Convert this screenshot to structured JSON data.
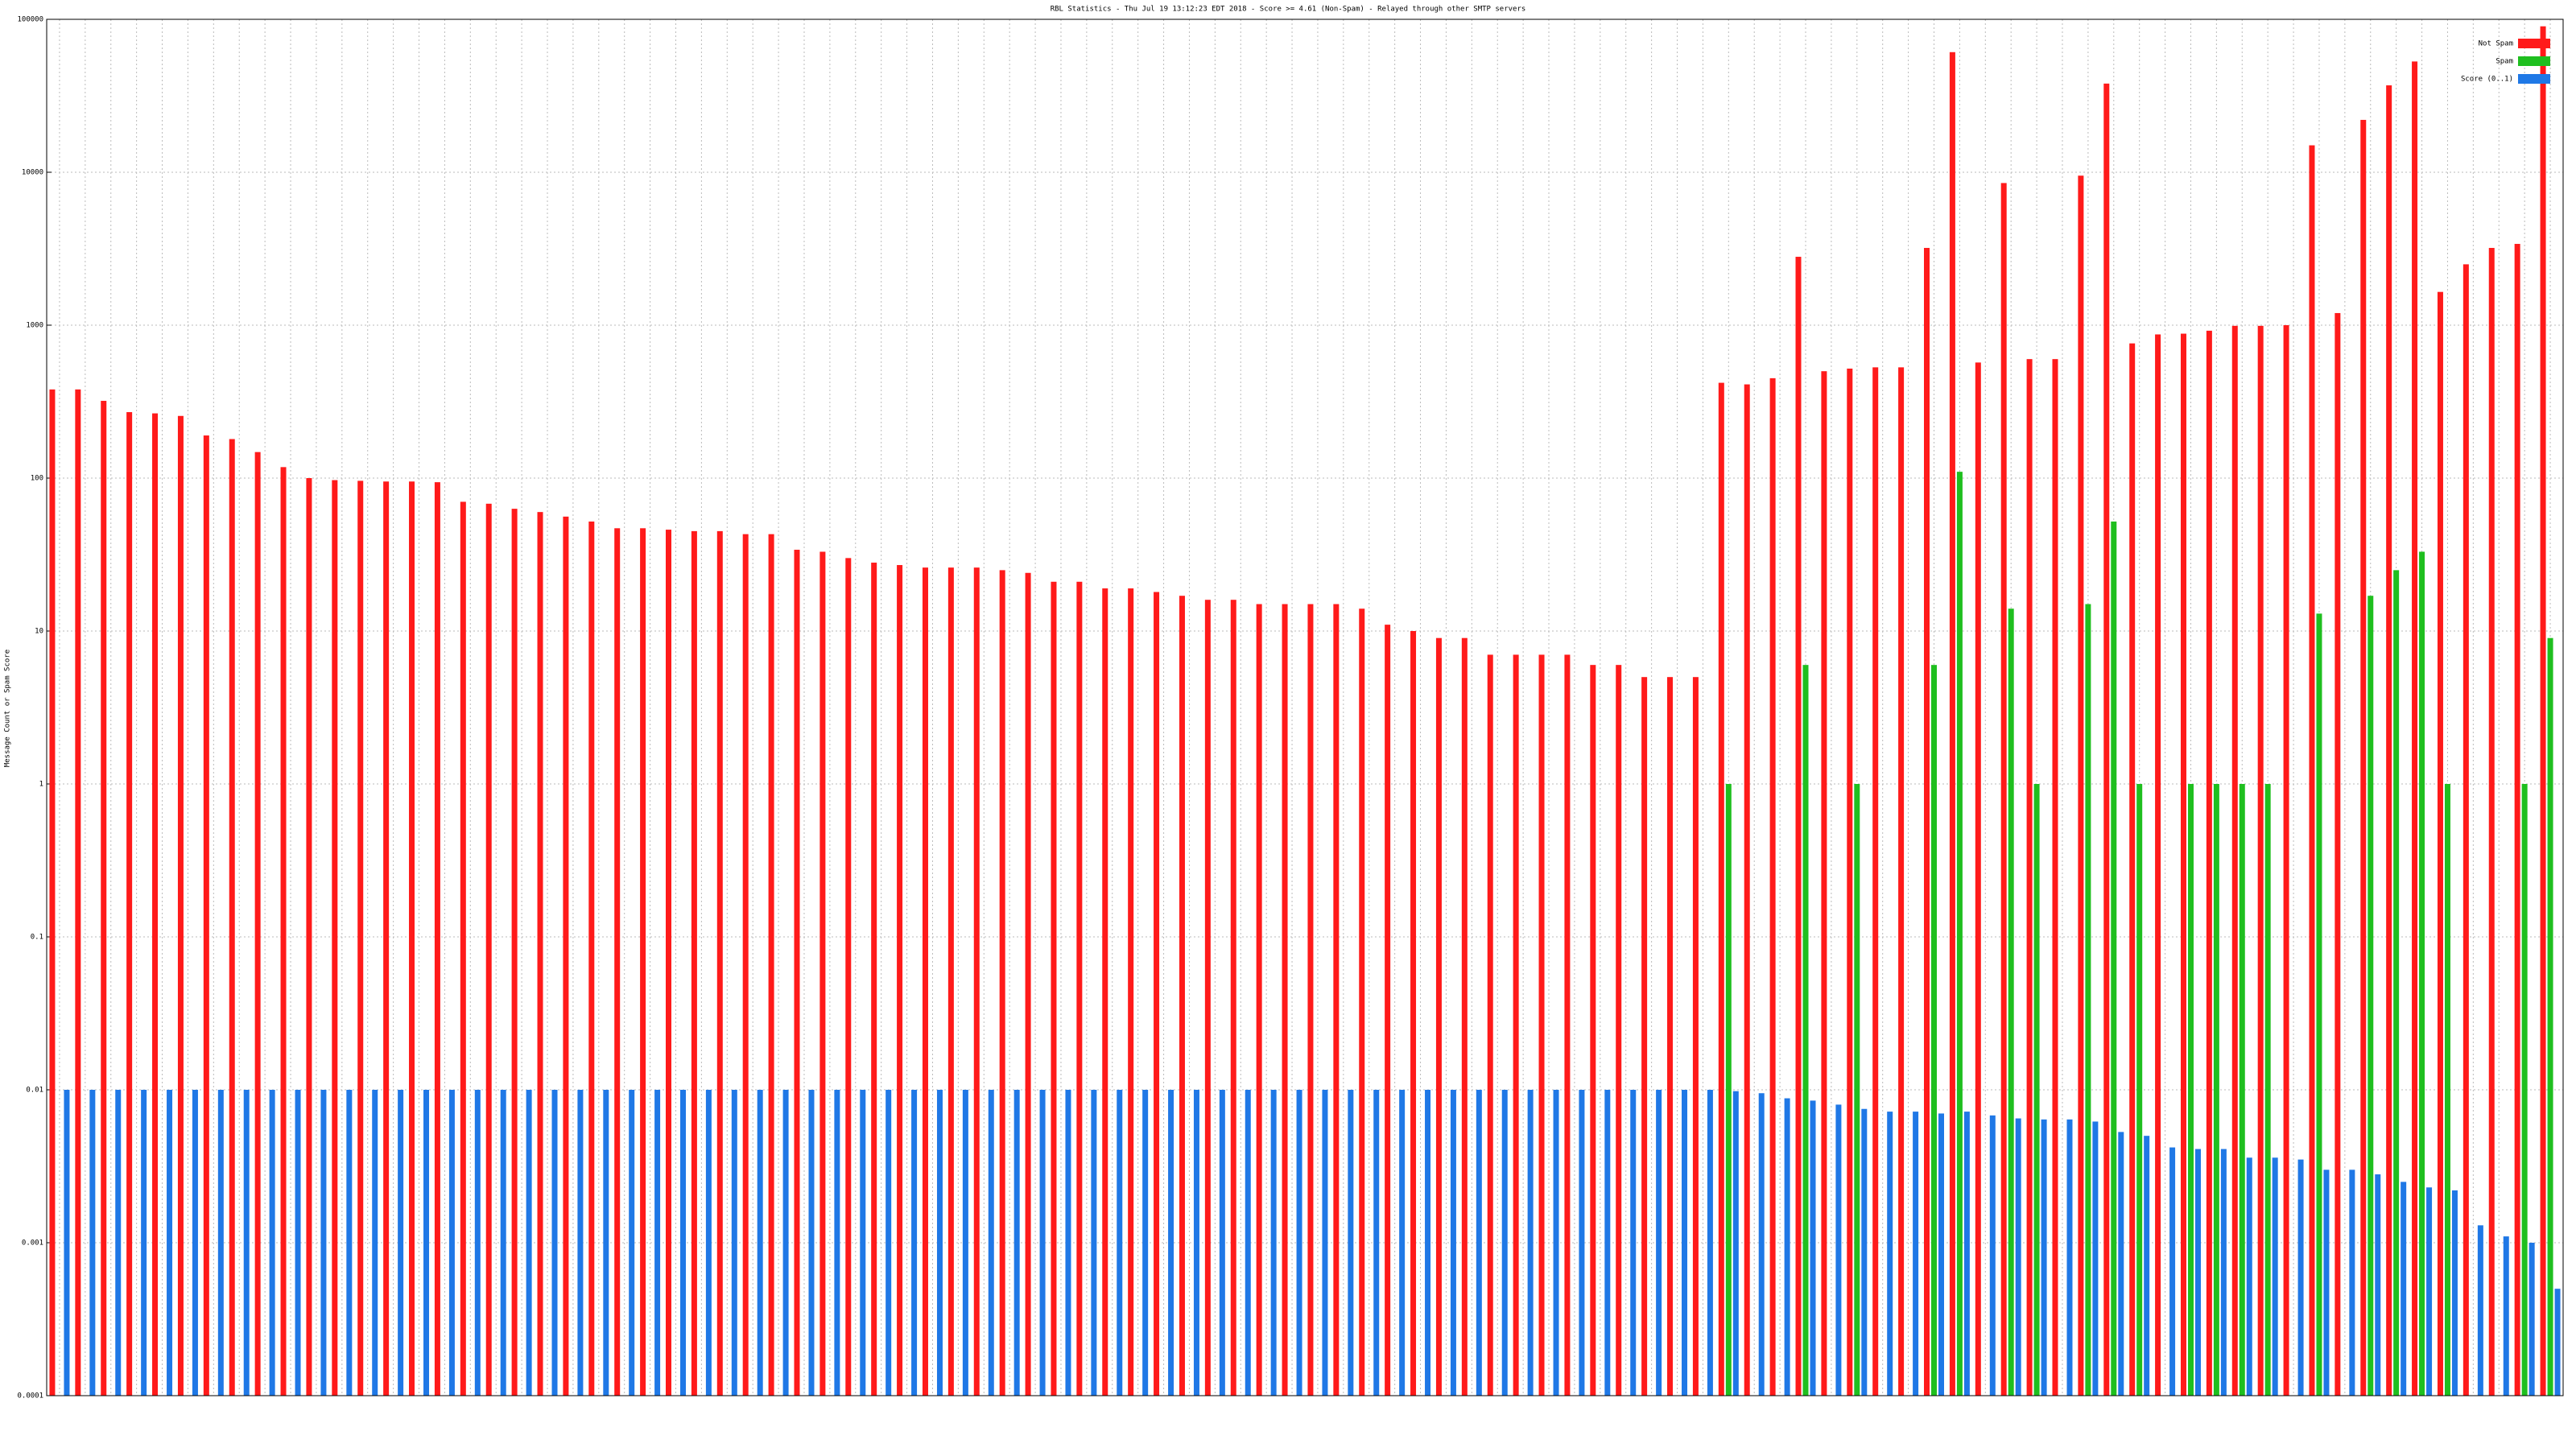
{
  "chart_data": {
    "type": "bar",
    "title": "RBL Statistics - Thu Jul 19 13:12:23 EDT 2018 - Score >= 4.61 (Non-Spam) - Relayed through other SMTP servers",
    "y_label": "Message Count or Spam Score",
    "log_scale": true,
    "grid": true,
    "legend": "top-right",
    "ylim": [
      0.0001,
      100000
    ],
    "yticks": [
      0.0001,
      0.001,
      0.01,
      0.1,
      1,
      10,
      100,
      1000,
      10000,
      100000
    ],
    "categories": [
      null,
      null,
      null,
      null,
      null,
      null,
      null,
      null,
      null,
      null,
      null,
      null,
      null,
      null,
      null,
      null,
      null,
      null,
      null,
      null,
      null,
      null,
      null,
      null,
      null,
      null,
      null,
      null,
      null,
      null,
      null,
      null,
      null,
      null,
      null,
      null,
      null,
      null,
      null,
      null,
      null,
      null,
      null,
      null,
      null,
      null,
      null,
      null,
      null,
      null,
      null,
      null,
      null,
      null,
      null,
      null,
      null,
      null,
      null,
      null,
      null,
      null,
      null,
      null,
      null,
      null,
      null,
      null,
      null,
      null,
      null,
      null,
      null,
      null,
      null,
      null,
      null,
      null,
      null,
      null,
      null,
      null,
      null,
      null,
      null,
      null,
      null,
      null,
      null,
      null,
      null,
      null,
      null,
      null,
      null,
      null,
      null,
      null
    ],
    "series": [
      {
        "name": "Not Spam",
        "color": "#ff1a1a",
        "values": [
          380,
          380,
          320,
          270,
          265,
          255,
          190,
          180,
          148,
          118,
          100,
          97,
          96,
          95,
          95,
          94,
          70,
          68,
          63,
          60,
          56,
          52,
          47,
          47,
          46,
          45,
          45,
          43,
          43,
          34,
          33,
          30,
          28,
          27,
          26,
          26,
          26,
          25,
          24,
          21,
          21,
          19,
          19,
          18,
          17,
          16,
          16,
          15,
          15,
          15,
          15,
          14,
          11,
          10,
          9,
          9,
          7,
          7,
          7,
          7,
          6,
          6,
          5,
          5,
          5,
          420,
          410,
          450,
          2800,
          500,
          520,
          530,
          530,
          3200,
          61000,
          570,
          8500,
          600,
          600,
          9500,
          38000,
          760,
          870,
          880,
          920,
          990,
          990,
          1000,
          15000,
          1200,
          22000,
          37000,
          53000,
          1650,
          2500,
          3200,
          3400,
          90000
        ]
      },
      {
        "name": "Spam",
        "color": "#1fbf1f",
        "values": [
          0,
          0,
          0,
          0,
          0,
          0,
          0,
          0,
          0,
          0,
          0,
          0,
          0,
          0,
          0,
          0,
          0,
          0,
          0,
          0,
          0,
          0,
          0,
          0,
          0,
          0,
          0,
          0,
          0,
          0,
          0,
          0,
          0,
          0,
          0,
          0,
          0,
          0,
          0,
          0,
          0,
          0,
          0,
          0,
          0,
          0,
          0,
          0,
          0,
          0,
          0,
          0,
          0,
          0,
          0,
          0,
          0,
          0,
          0,
          0,
          0,
          0,
          0,
          0,
          0,
          1,
          0,
          0,
          6,
          0,
          1,
          0,
          0,
          6,
          110,
          0,
          14,
          1,
          0,
          15,
          52,
          1,
          0,
          1,
          1,
          1,
          1,
          0,
          13,
          0,
          17,
          25,
          33,
          1,
          0,
          0,
          1,
          9
        ]
      },
      {
        "name": "Score (0..1)",
        "color": "#1f78e6",
        "values": [
          0.01,
          0.01,
          0.01,
          0.01,
          0.01,
          0.01,
          0.01,
          0.01,
          0.01,
          0.01,
          0.01,
          0.01,
          0.01,
          0.01,
          0.01,
          0.01,
          0.01,
          0.01,
          0.01,
          0.01,
          0.01,
          0.01,
          0.01,
          0.01,
          0.01,
          0.01,
          0.01,
          0.01,
          0.01,
          0.01,
          0.01,
          0.01,
          0.01,
          0.01,
          0.01,
          0.01,
          0.01,
          0.01,
          0.01,
          0.01,
          0.01,
          0.01,
          0.01,
          0.01,
          0.01,
          0.01,
          0.01,
          0.01,
          0.01,
          0.01,
          0.01,
          0.01,
          0.01,
          0.01,
          0.01,
          0.01,
          0.01,
          0.01,
          0.01,
          0.01,
          0.01,
          0.01,
          0.01,
          0.01,
          0.01,
          0.0098,
          0.0095,
          0.0088,
          0.0085,
          0.008,
          0.0075,
          0.0072,
          0.0072,
          0.007,
          0.0072,
          0.0068,
          0.0065,
          0.0064,
          0.0064,
          0.0062,
          0.0053,
          0.005,
          0.0042,
          0.0041,
          0.0041,
          0.0036,
          0.0036,
          0.0035,
          0.003,
          0.003,
          0.0028,
          0.0025,
          0.0023,
          0.0022,
          0.0013,
          0.0011,
          0.001,
          0.0005
        ]
      }
    ]
  }
}
